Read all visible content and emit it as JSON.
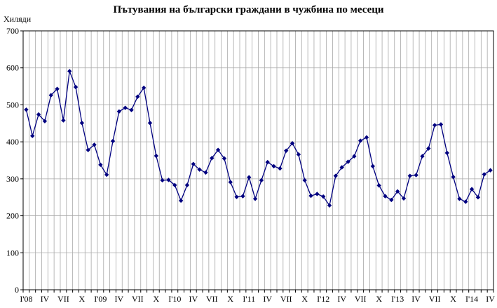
{
  "chart_data": {
    "type": "line",
    "title": "Пътувания на български граждани в чужбина по месеци",
    "ylabel": "Хиляди",
    "xlabel": "",
    "ylim": [
      0,
      700
    ],
    "yticks": [
      0,
      100,
      200,
      300,
      400,
      500,
      600,
      700
    ],
    "grid": true,
    "x_tick_labels": [
      "I'08",
      "IV",
      "VII",
      "X",
      "I'09",
      "IV",
      "VII",
      "X",
      "I'10",
      "IV",
      "VII",
      "X",
      "I'11",
      "IV",
      "VII",
      "X",
      "I'12",
      "IV",
      "VII",
      "X",
      "I'13",
      "IV",
      "VII",
      "X",
      "I'14",
      "IV"
    ],
    "series": [
      {
        "color": "#000080",
        "values": [
          487,
          416,
          474,
          456,
          526,
          543,
          458,
          591,
          548,
          451,
          378,
          392,
          338,
          311,
          402,
          482,
          492,
          486,
          522,
          546,
          451,
          362,
          296,
          297,
          283,
          241,
          283,
          340,
          325,
          317,
          356,
          378,
          355,
          291,
          251,
          253,
          304,
          246,
          296,
          345,
          334,
          328,
          376,
          396,
          366,
          296,
          254,
          259,
          252,
          228,
          308,
          331,
          346,
          361,
          403,
          412,
          334,
          282,
          253,
          243,
          266,
          247,
          308,
          310,
          361,
          382,
          445,
          447,
          370,
          305,
          246,
          238,
          272,
          250,
          312,
          323
        ]
      }
    ]
  }
}
